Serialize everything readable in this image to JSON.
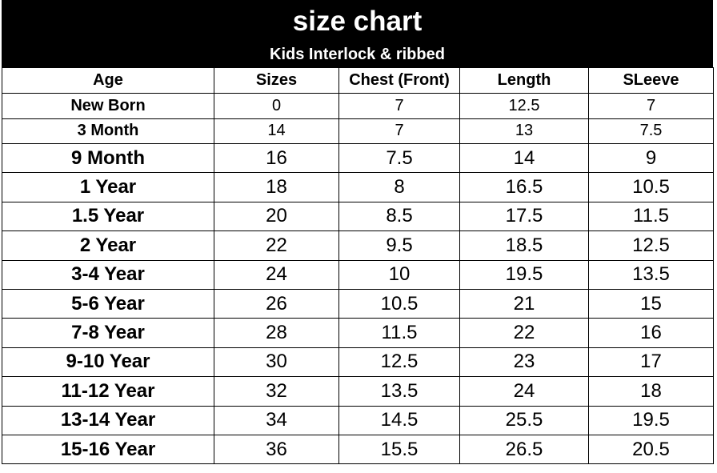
{
  "header": {
    "title": "size chart",
    "subtitle": "Kids  Interlock & ribbed"
  },
  "table": {
    "columns": [
      "Age",
      "Sizes",
      "Chest (Front)",
      "Length",
      "SLeeve"
    ],
    "rows": [
      [
        "New Born",
        "0",
        "7",
        "12.5",
        "7"
      ],
      [
        "3 Month",
        "14",
        "7",
        "13",
        "7.5"
      ],
      [
        "9 Month",
        "16",
        "7.5",
        "14",
        "9"
      ],
      [
        "1 Year",
        "18",
        "8",
        "16.5",
        "10.5"
      ],
      [
        "1.5 Year",
        "20",
        "8.5",
        "17.5",
        "11.5"
      ],
      [
        "2 Year",
        "22",
        "9.5",
        "18.5",
        "12.5"
      ],
      [
        "3-4 Year",
        "24",
        "10",
        "19.5",
        "13.5"
      ],
      [
        "5-6 Year",
        "26",
        "10.5",
        "21",
        "15"
      ],
      [
        "7-8 Year",
        "28",
        "11.5",
        "22",
        "16"
      ],
      [
        "9-10 Year",
        "30",
        "12.5",
        "23",
        "17"
      ],
      [
        "11-12 Year",
        "32",
        "13.5",
        "24",
        "18"
      ],
      [
        "13-14 Year",
        "34",
        "14.5",
        "25.5",
        "19.5"
      ],
      [
        "15-16 Year",
        "36",
        "15.5",
        "26.5",
        "20.5"
      ]
    ]
  },
  "colors": {
    "banner_bg": "#000000",
    "banner_text": "#ffffff"
  }
}
